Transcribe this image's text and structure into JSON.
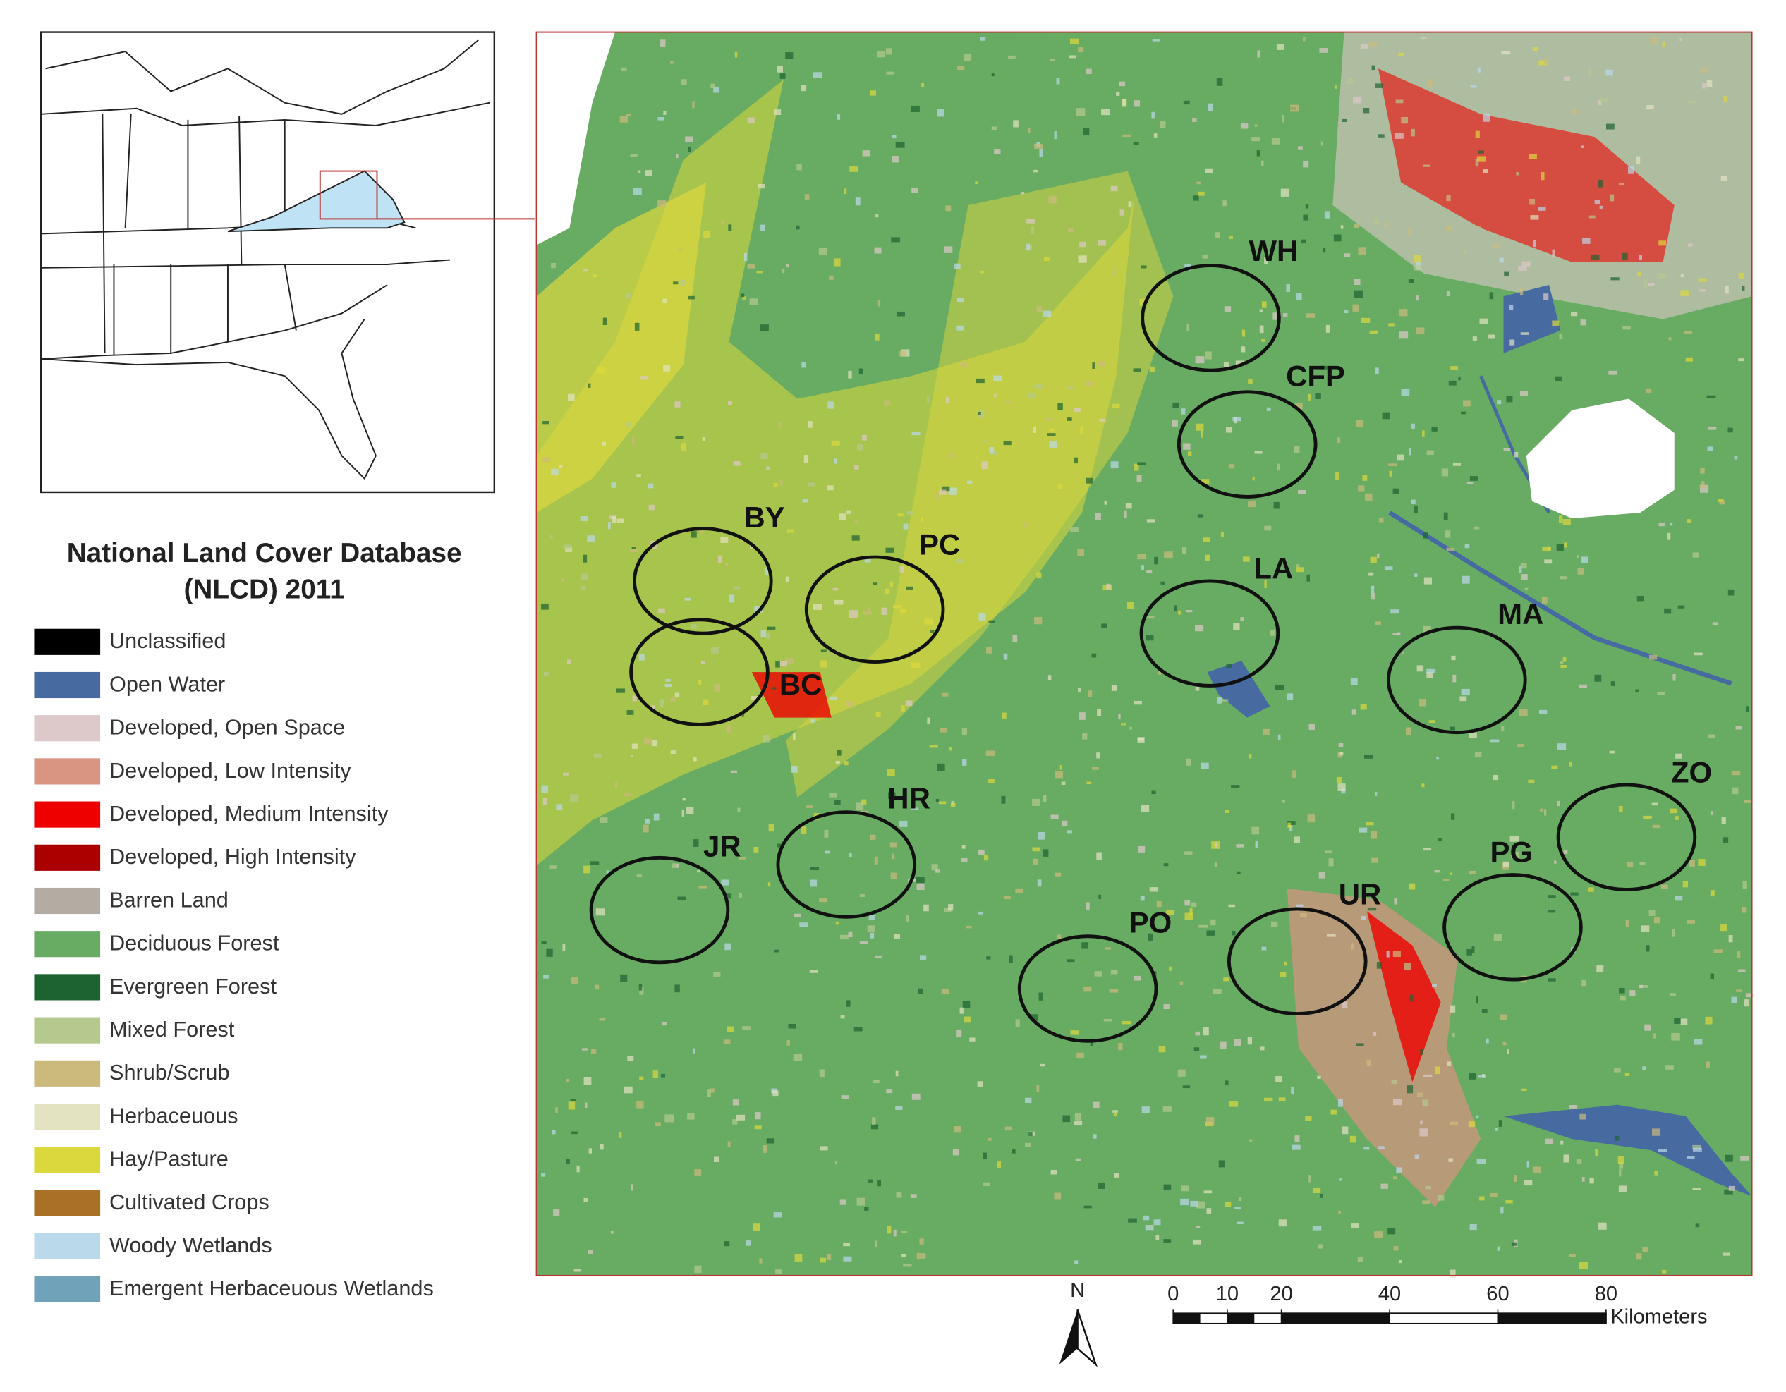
{
  "legend": {
    "title": [
      "National Land Cover Database",
      "(NLCD) 2011"
    ],
    "items": [
      {
        "label": "Unclassified",
        "color": "#000000"
      },
      {
        "label": "Open Water",
        "color": "#476ba1"
      },
      {
        "label": "Developed, Open Space",
        "color": "#ddc9c9"
      },
      {
        "label": "Developed, Low Intensity",
        "color": "#d99482"
      },
      {
        "label": "Developed, Medium Intensity",
        "color": "#ee0000"
      },
      {
        "label": "Developed, High Intensity",
        "color": "#ab0000"
      },
      {
        "label": "Barren Land",
        "color": "#b3aca3"
      },
      {
        "label": "Deciduous Forest",
        "color": "#68ab63"
      },
      {
        "label": "Evergreen Forest",
        "color": "#1c6330"
      },
      {
        "label": "Mixed Forest",
        "color": "#b5c98f"
      },
      {
        "label": "Shrub/Scrub",
        "color": "#ccba7d"
      },
      {
        "label": "Herbaceuous",
        "color": "#e3e3c2"
      },
      {
        "label": "Hay/Pasture",
        "color": "#dbd83d"
      },
      {
        "label": "Cultivated Crops",
        "color": "#ab7028"
      },
      {
        "label": "Woody Wetlands",
        "color": "#bad9eb"
      },
      {
        "label": "Emergent Herbaceuous Wetlands",
        "color": "#70a3ba"
      }
    ]
  },
  "sites": [
    "WH",
    "CFP",
    "BY",
    "PC",
    "BC",
    "LA",
    "MA",
    "ZO",
    "HR",
    "JR",
    "PG",
    "UR",
    "PO"
  ],
  "north": "N",
  "scale_bar": {
    "ticks": [
      0,
      10,
      20,
      40,
      60,
      80
    ],
    "unit": "Kilometers"
  }
}
